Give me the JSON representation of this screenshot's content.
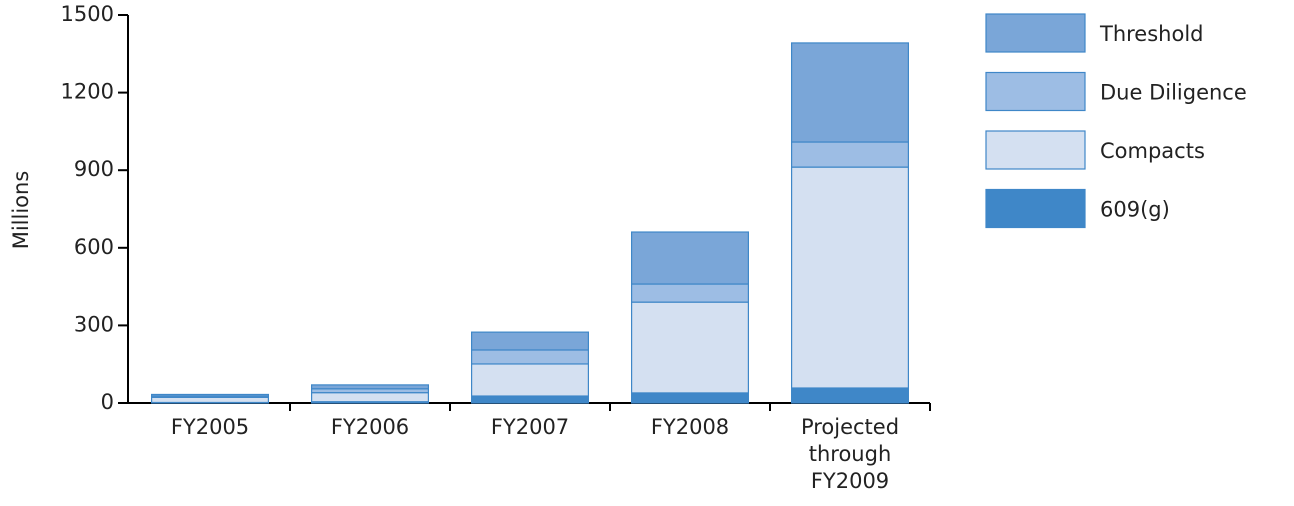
{
  "chart_data": {
    "type": "stacked_bar",
    "y_label": "Millions",
    "categories": [
      "FY2005",
      "FY2006",
      "FY2007",
      "FY2008",
      "Projected through FY2009"
    ],
    "series": [
      {
        "name": "609(g)",
        "color": "#3f87c8",
        "values": [
          2,
          5,
          27,
          39,
          58
        ]
      },
      {
        "name": "Compacts",
        "color": "#d4e0f1",
        "values": [
          20,
          35,
          124,
          351,
          854
        ]
      },
      {
        "name": "Due Diligence",
        "color": "#9dbde4",
        "values": [
          5,
          15,
          54,
          70,
          97
        ]
      },
      {
        "name": "Threshold",
        "color": "#7aa6d8",
        "values": [
          6,
          15,
          69,
          201,
          383
        ]
      }
    ],
    "ylim": [
      0,
      1500
    ],
    "yticks": [
      0,
      300,
      600,
      900,
      1200,
      1500
    ],
    "edge_color": "#3f87c8"
  }
}
